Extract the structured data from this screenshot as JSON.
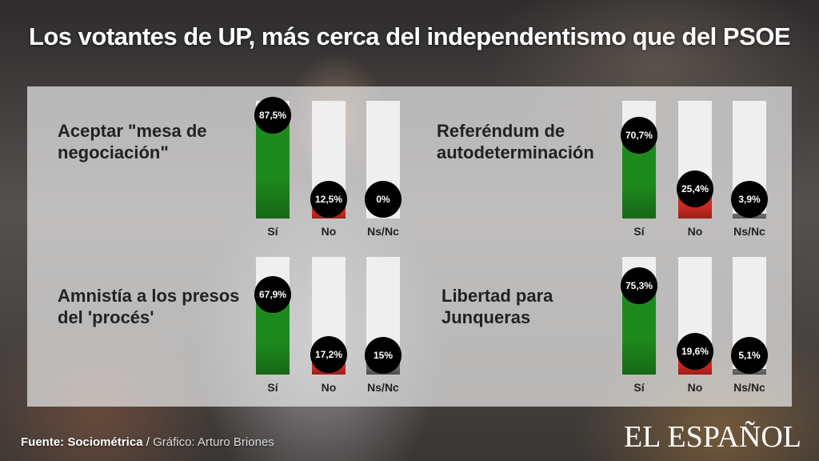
{
  "title": "Los votantes de UP, más cerca del independentismo que del PSOE",
  "footer": {
    "source_label": "Fuente: Sociométrica",
    "separator": " / ",
    "credit": "Gráfico: Arturo Briones"
  },
  "logo": "EL ESPAÑOL",
  "colors": {
    "si": "#1e8a1e",
    "no": "#cc2a22",
    "nsnc": "#666666"
  },
  "chart_data": [
    {
      "type": "bar",
      "title": "Aceptar \"mesa de negociación\"",
      "categories": [
        "Sí",
        "No",
        "Ns/Nc"
      ],
      "values": [
        87.5,
        12.5,
        0
      ],
      "labels": [
        "87,5%",
        "12,5%",
        "0%"
      ],
      "ylim": [
        0,
        100
      ]
    },
    {
      "type": "bar",
      "title": "Referéndum de autodeterminación",
      "categories": [
        "Sí",
        "No",
        "Ns/Nc"
      ],
      "values": [
        70.7,
        25.4,
        3.9
      ],
      "labels": [
        "70,7%",
        "25,4%",
        "3,9%"
      ],
      "ylim": [
        0,
        100
      ]
    },
    {
      "type": "bar",
      "title": "Amnistía a los presos del 'procés'",
      "categories": [
        "Sí",
        "No",
        "Ns/Nc"
      ],
      "values": [
        67.9,
        17.2,
        15
      ],
      "labels": [
        "67,9%",
        "17,2%",
        "15%"
      ],
      "ylim": [
        0,
        100
      ]
    },
    {
      "type": "bar",
      "title": "Libertad para Junqueras",
      "categories": [
        "Sí",
        "No",
        "Ns/Nc"
      ],
      "values": [
        75.3,
        19.6,
        5.1
      ],
      "labels": [
        "75,3%",
        "19,6%",
        "5,1%"
      ],
      "ylim": [
        0,
        100
      ]
    }
  ]
}
